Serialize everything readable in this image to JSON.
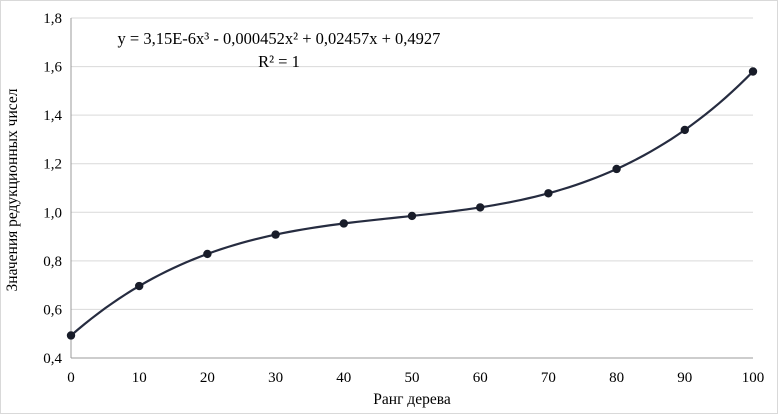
{
  "chart_data": {
    "type": "scatter",
    "title": "",
    "xlabel": "Ранг дерева",
    "ylabel": "Значения редукционных чисел",
    "x": [
      0,
      10,
      20,
      30,
      40,
      50,
      60,
      70,
      80,
      90,
      100
    ],
    "y": [
      0.4927,
      0.6964,
      0.8285,
      0.9081,
      0.9539,
      0.985,
      1.0201,
      1.0783,
      1.1783,
      1.3392,
      1.5797
    ],
    "xlim": [
      0,
      100
    ],
    "ylim": [
      0.4,
      1.8
    ],
    "x_tick_values": [
      0,
      10,
      20,
      30,
      40,
      50,
      60,
      70,
      80,
      90,
      100
    ],
    "x_tick_labels": [
      "0",
      "10",
      "20",
      "30",
      "40",
      "50",
      "60",
      "70",
      "80",
      "90",
      "100"
    ],
    "y_tick_values": [
      0.4,
      0.6,
      0.8,
      1.0,
      1.2,
      1.4,
      1.6,
      1.8
    ],
    "y_tick_labels": [
      "0,4",
      "0,6",
      "0,8",
      "1,0",
      "1,2",
      "1,4",
      "1,6",
      "1,8"
    ],
    "grid": "horizontal",
    "legend": "none",
    "trendline": {
      "type": "polynomial",
      "degree": 3,
      "coefficients": {
        "a3": 3.15e-06,
        "a2": -0.000452,
        "a1": 0.02457,
        "a0": 0.4927
      },
      "equation_label": "y = 3,15E-6x³ - 0,000452x² + 0,02457x + 0,4927",
      "r_squared_label": "R² = 1"
    },
    "colors": {
      "line": "#262c40",
      "marker": "#181c29",
      "gridline": "#d9d9d9",
      "axis": "#9b9b9b",
      "text": "#000000",
      "background": "#ffffff",
      "frame_border": "#d9d9d9"
    }
  }
}
